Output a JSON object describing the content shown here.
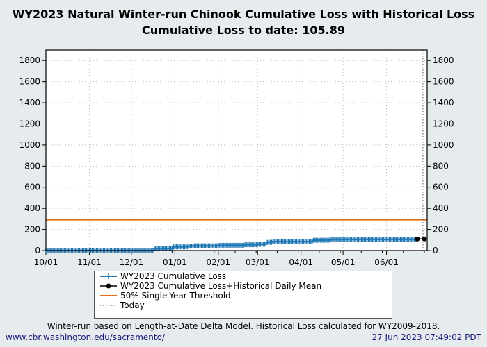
{
  "chart_data": {
    "type": "line",
    "title": "WY2023 Natural Winter-run Chinook Cumulative Loss with Historical Loss",
    "subtitle": "Cumulative Loss to date: 105.89",
    "xlim": [
      "2022-10-01",
      "2023-06-30"
    ],
    "ylim": [
      0,
      1900
    ],
    "x_ticks": [
      "10/01",
      "11/01",
      "12/01",
      "01/01",
      "02/01",
      "03/01",
      "04/01",
      "05/01",
      "06/01"
    ],
    "y_ticks": [
      0,
      200,
      400,
      600,
      800,
      1000,
      1200,
      1400,
      1600,
      1800
    ],
    "grid": true,
    "legend_placement": "bottom",
    "series": [
      {
        "name": "WY2023 Cumulative Loss",
        "color": "#1f77b4",
        "style": "step-plus-markers",
        "points": [
          [
            "2022-10-01",
            0
          ],
          [
            "2022-12-17",
            2
          ],
          [
            "2022-12-18",
            18
          ],
          [
            "2022-12-31",
            35
          ],
          [
            "2023-01-11",
            42
          ],
          [
            "2023-01-15",
            45
          ],
          [
            "2023-02-01",
            50
          ],
          [
            "2023-02-20",
            55
          ],
          [
            "2023-03-01",
            60
          ],
          [
            "2023-03-07",
            64
          ],
          [
            "2023-03-08",
            78
          ],
          [
            "2023-03-12",
            85
          ],
          [
            "2023-04-10",
            98
          ],
          [
            "2023-04-22",
            104
          ],
          [
            "2023-05-01",
            105.89
          ],
          [
            "2023-06-23",
            105.89
          ]
        ]
      },
      {
        "name": "WY2023 Cumulative Loss+Historical Daily Mean",
        "color": "#000000",
        "style": "line-dot-markers",
        "points": [
          [
            "2023-06-23",
            110
          ],
          [
            "2023-06-28",
            110
          ]
        ]
      },
      {
        "name": "50% Single-Year Threshold",
        "color": "#e66c12",
        "style": "line",
        "value": 292
      },
      {
        "name": "Today",
        "color": "#555555",
        "style": "dotted-vertical",
        "date": "2023-06-27"
      }
    ]
  },
  "footer": {
    "note": "Winter-run based on Length-at-Date Delta Model. Historical Loss calculated for WY2009-2018.",
    "link": "www.cbr.washington.edu/sacramento/",
    "timestamp": "27 Jun 2023 07:49:02 PDT"
  }
}
